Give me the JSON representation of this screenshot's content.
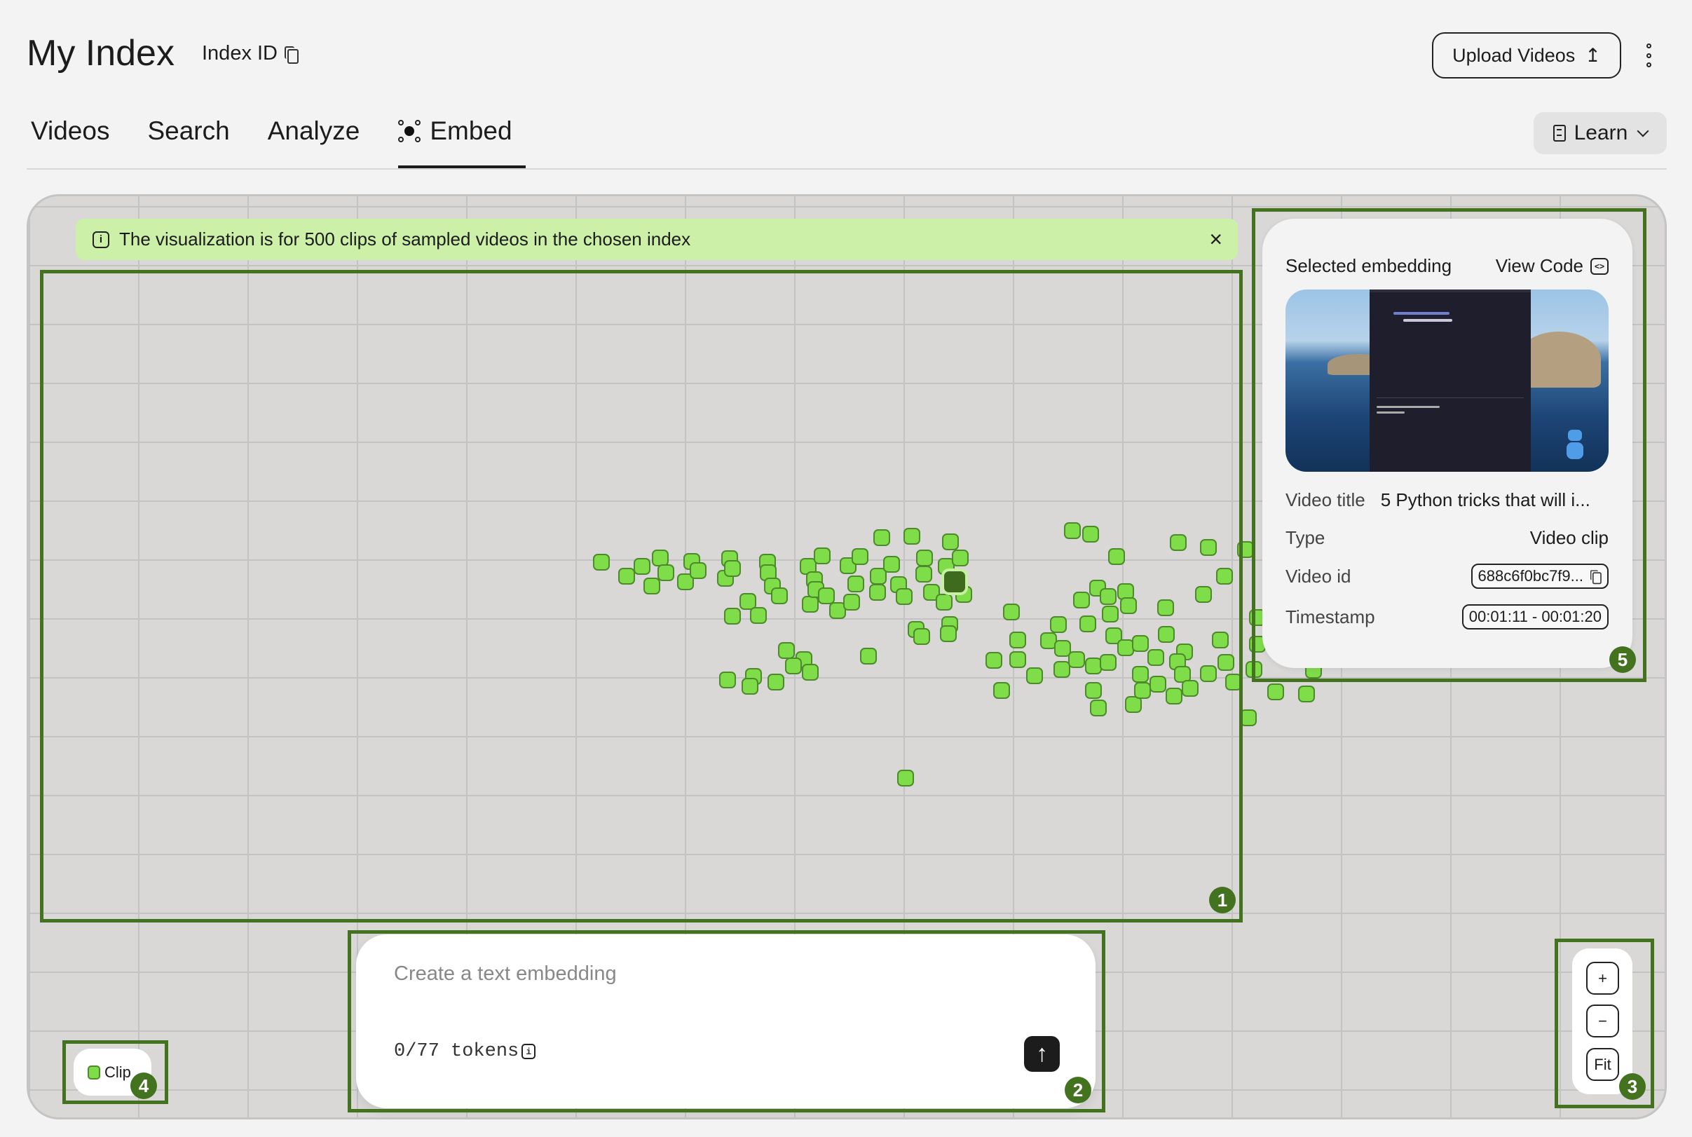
{
  "header": {
    "title": "My Index",
    "index_id_label": "Index ID",
    "upload_label": "Upload Videos",
    "upload_icon": "↥",
    "learn_label": "Learn"
  },
  "tabs": [
    {
      "label": "Videos",
      "active": false
    },
    {
      "label": "Search",
      "active": false
    },
    {
      "label": "Analyze",
      "active": false
    },
    {
      "label": "Embed",
      "active": true
    }
  ],
  "banner": {
    "text": "The visualization is for 500 clips of sampled videos in the chosen index",
    "close": "×",
    "icon": "i"
  },
  "selected_embedding": {
    "heading": "Selected embedding",
    "view_code_label": "View Code",
    "video_title_label": "Video title",
    "video_title": "5 Python tricks that will i...",
    "type_label": "Type",
    "type": "Video clip",
    "video_id_label": "Video id",
    "video_id": "688c6f0bc7f9...",
    "timestamp_label": "Timestamp",
    "timestamp": "00:01:11 - 00:01:20"
  },
  "text_embedding": {
    "placeholder": "Create a text embedding",
    "value": "",
    "tokens": "0/77 tokens",
    "send_icon": "↑"
  },
  "legend": {
    "label": "Clip",
    "color": "#80dd4a"
  },
  "zoom_controls": {
    "zoom_in": "+",
    "zoom_out": "−",
    "fit": "Fit"
  },
  "annotations": [
    "1",
    "2",
    "3",
    "4",
    "5"
  ],
  "colors": {
    "point": "#80dd4a",
    "point_selected": "#3f6b1f",
    "annotation": "#44731f",
    "banner": "#ccf0a8"
  }
}
